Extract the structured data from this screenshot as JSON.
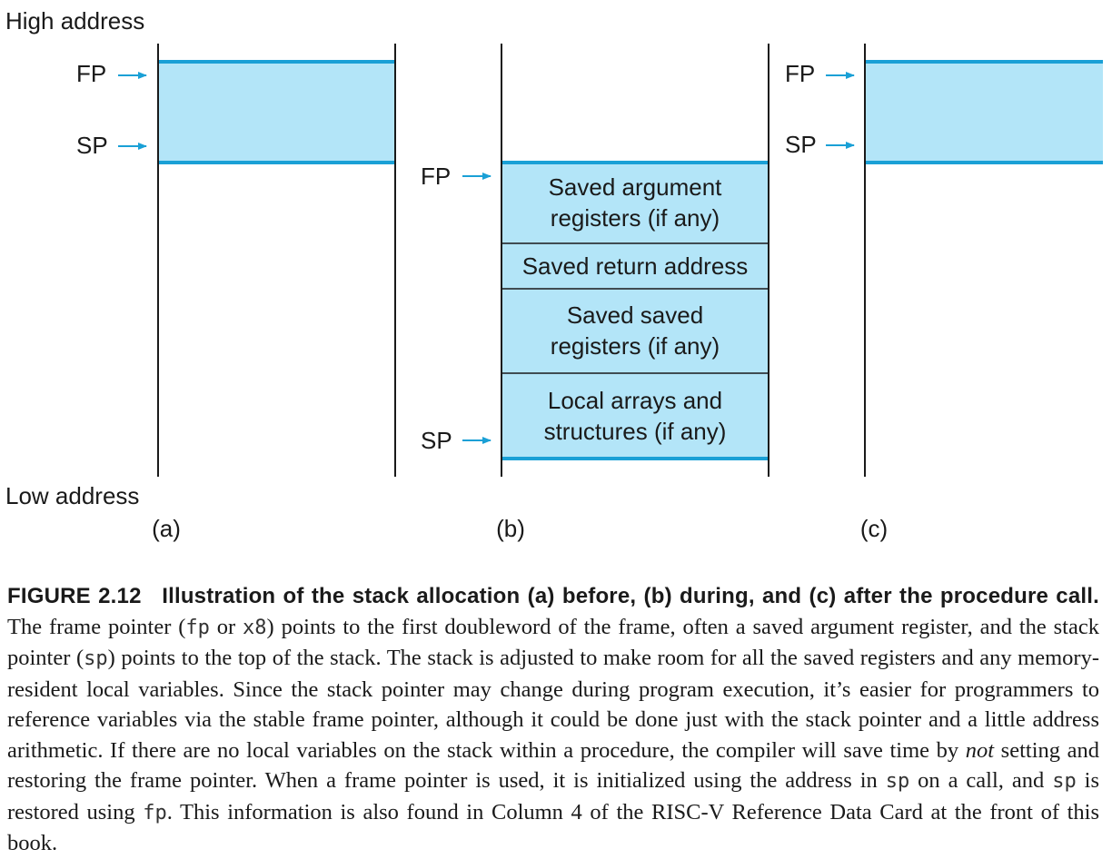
{
  "diagram": {
    "high_address": "High address",
    "low_address": "Low address",
    "fp_label": "FP",
    "sp_label": "SP",
    "panel_labels": [
      "(a)",
      "(b)",
      "(c)"
    ],
    "frame_items": [
      [
        "Saved argument",
        "registers (if any)"
      ],
      [
        "Saved return address"
      ],
      [
        "Saved saved",
        "registers (if any)"
      ],
      [
        "Local arrays and",
        "structures (if any)"
      ]
    ],
    "colors": {
      "frame_fill": "#b3e5f8",
      "frame_edge": "#1aa0d6",
      "arrow": "#1aa0d6",
      "line": "#1a1a1a"
    }
  },
  "caption": {
    "figure_number": "FIGURE 2.12",
    "figure_title": "Illustration of the stack allocation (a) before, (b) during, and (c) after the procedure call.",
    "parts": [
      {
        "t": "text",
        "v": " The frame pointer ("
      },
      {
        "t": "code",
        "v": "fp"
      },
      {
        "t": "text",
        "v": " or "
      },
      {
        "t": "code",
        "v": "x8"
      },
      {
        "t": "text",
        "v": ") points to the first doubleword of the frame, often a saved argument register, and the stack pointer ("
      },
      {
        "t": "code",
        "v": "sp"
      },
      {
        "t": "text",
        "v": ") points to the top of the stack. The stack is adjusted to make room for all the saved registers and any memory-resident local variables. Since the stack pointer may change during program execution, it’s easier for programmers to reference variables via the stable frame pointer, although it could be done just with the stack pointer and a little address arithmetic. If there are no local variables on the stack within a procedure, the compiler will save time by "
      },
      {
        "t": "em",
        "v": "not"
      },
      {
        "t": "text",
        "v": " setting and restoring the frame pointer. When a frame pointer is used, it is initialized using the address in "
      },
      {
        "t": "code",
        "v": "sp"
      },
      {
        "t": "text",
        "v": " on a call, and "
      },
      {
        "t": "code",
        "v": "sp"
      },
      {
        "t": "text",
        "v": " is restored using "
      },
      {
        "t": "code",
        "v": "fp"
      },
      {
        "t": "text",
        "v": ". This information is also found in Column 4 of the RISC-V Reference Data Card at the front of this book."
      }
    ]
  }
}
